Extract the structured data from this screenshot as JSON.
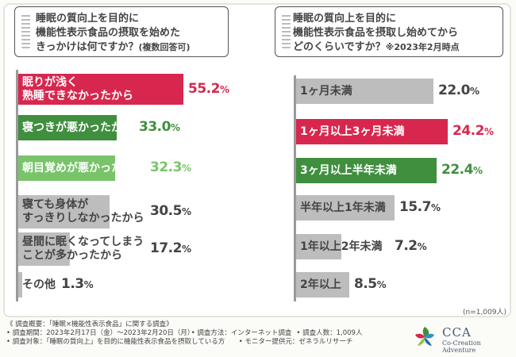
{
  "colors": {
    "red": "#d8274e",
    "green_dark": "#3f8f3e",
    "green_light": "#79c46a",
    "gray": "#bdbdbd",
    "text": "#444444"
  },
  "left": {
    "question_line1": "睡眠の質向上を目的に",
    "question_line2": "機能性表示食品の摂取を始めた",
    "question_line3": "きっかけは何ですか？",
    "question_note": "(複数回答可)"
  },
  "right": {
    "question_line1": "睡眠の質向上を目的に",
    "question_line2": "機能性表示食品を摂取し始めてから",
    "question_line3": "どのくらいですか？",
    "question_note": "※2023年2月時点"
  },
  "sample_size": "(n=1,009人)",
  "chart_data": [
    {
      "type": "bar",
      "orientation": "horizontal",
      "title": "睡眠の質向上を目的に機能性表示食品の摂取を始めたきっかけは何ですか？(複数回答可)",
      "unit": "%",
      "categories": [
        [
          "眠りが浅く",
          "熟睡できなかったから"
        ],
        [
          "寝つきが悪かったから"
        ],
        [
          "朝目覚めが悪かったから"
        ],
        [
          "寝ても身体が",
          "すっきりしなかったから"
        ],
        [
          "昼間に眠くなってしまう",
          "ことが多かったから"
        ],
        [
          "その他"
        ]
      ],
      "values": [
        55.2,
        33.0,
        32.3,
        30.5,
        17.2,
        1.3
      ],
      "value_labels": [
        [
          "55.2",
          "%"
        ],
        [
          "33.0",
          "%"
        ],
        [
          "32.3",
          "%"
        ],
        [
          "30.5",
          "%"
        ],
        [
          "17.2",
          "%"
        ],
        [
          "1.3",
          "%"
        ]
      ],
      "colors": [
        "red",
        "green_dark",
        "green_light",
        "gray",
        "gray",
        "gray"
      ],
      "xlim": [
        0,
        60
      ]
    },
    {
      "type": "bar",
      "orientation": "horizontal",
      "title": "睡眠の質向上を目的に機能性表示食品を摂取し始めてからどのくらいですか？※2023年2月時点",
      "unit": "%",
      "categories": [
        [
          "1ヶ月未満"
        ],
        [
          "1ヶ月以上3ヶ月未満"
        ],
        [
          "3ヶ月以上半年未満"
        ],
        [
          "半年以上1年未満"
        ],
        [
          "1年以上2年未満"
        ],
        [
          "2年以上"
        ]
      ],
      "values": [
        22.0,
        24.2,
        22.4,
        15.7,
        7.2,
        8.5
      ],
      "value_labels": [
        [
          "22.0",
          "%"
        ],
        [
          "24.2",
          "%"
        ],
        [
          "22.4",
          "%"
        ],
        [
          "15.7",
          "%"
        ],
        [
          "7.2",
          "%"
        ],
        [
          "8.5",
          "%"
        ]
      ],
      "colors": [
        "gray",
        "red",
        "green_dark",
        "gray",
        "gray",
        "gray"
      ],
      "xlim": [
        0,
        26
      ]
    }
  ],
  "footer": {
    "line1": "《 調査概要：「睡眠×機能性表示食品」に関する調査》",
    "line2a": "• 調査期間：2023年2月17日（金）〜2023年2月20日（月）",
    "line2b": "• 調査方法：インターネット調査",
    "line2c": "• 調査人数：1,009人",
    "line3a": "• 調査対象：「睡眠の質向上」を目的に機能性表示食品を摂取している方",
    "line3b": "• モニター提供元：ゼネラルリサーチ"
  },
  "brand": {
    "name": "CCA",
    "tagline": "Co-Creation Adventure"
  }
}
